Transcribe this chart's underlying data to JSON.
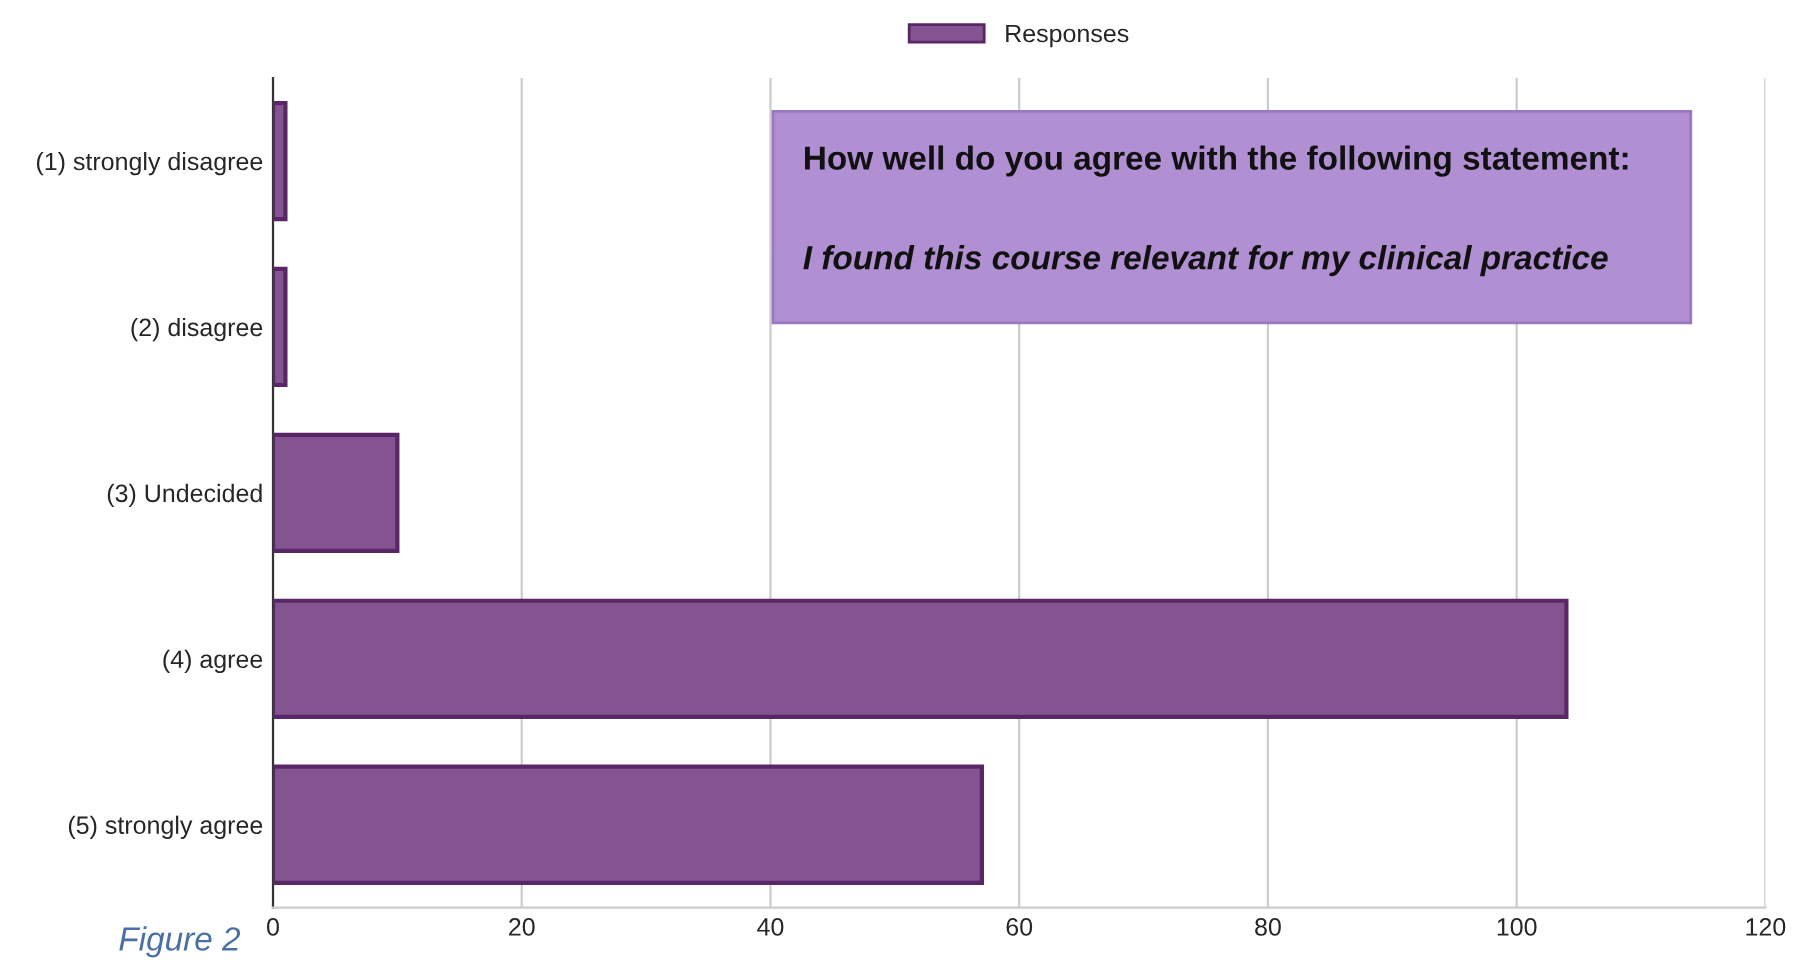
{
  "chart_data": {
    "type": "bar",
    "orientation": "horizontal",
    "categories": [
      "(1) strongly disagree",
      "(2) disagree",
      "(3) Undecided",
      "(4) agree",
      "(5) strongly agree"
    ],
    "series": [
      {
        "name": "Responses",
        "color": "#83548f",
        "values": [
          1,
          1,
          10,
          104,
          57
        ]
      }
    ],
    "xlim": [
      0,
      120
    ],
    "xticks": [
      0,
      20,
      40,
      60,
      80,
      100,
      120
    ],
    "grid": "x",
    "legend": "top",
    "annotations": [
      "How well do you agree with the following statement:",
      "I found this course relevant for my clinical practice",
      "Figure 2"
    ]
  }
}
